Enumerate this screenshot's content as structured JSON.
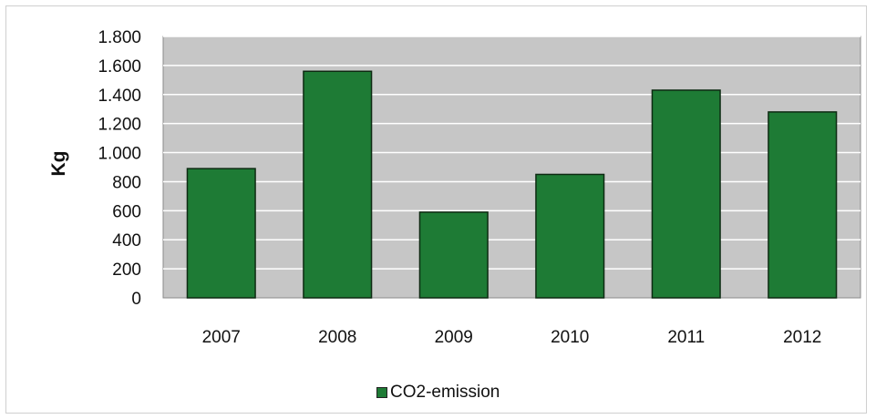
{
  "chart_data": {
    "type": "bar",
    "title": "",
    "xlabel": "",
    "ylabel": "Kg",
    "categories": [
      "2007",
      "2008",
      "2009",
      "2010",
      "2011",
      "2012"
    ],
    "series": [
      {
        "name": "CO2-emission",
        "values": [
          890,
          1560,
          590,
          850,
          1430,
          1280
        ]
      }
    ],
    "ylim": [
      0,
      1800
    ],
    "yticks": [
      0,
      200,
      400,
      600,
      800,
      1000,
      1200,
      1400,
      1600,
      1800
    ],
    "ytick_labels": [
      "0",
      "200",
      "400",
      "600",
      "800",
      "1.000",
      "1.200",
      "1.400",
      "1.600",
      "1.800"
    ],
    "grid": true,
    "legend": "bottom",
    "colors": {
      "bar": "#1e7b35",
      "bar_edge": "#0d2a12",
      "plot_bg": "#c6c6c6",
      "grid": "#ffffff"
    }
  }
}
